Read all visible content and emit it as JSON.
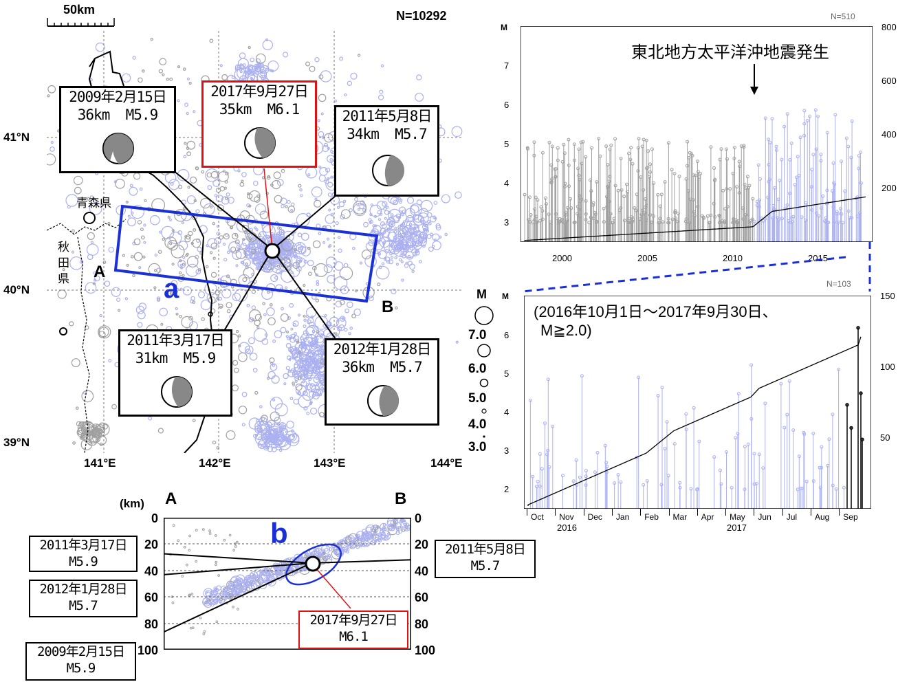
{
  "map": {
    "scale_label": "50km",
    "count": "N=10292",
    "lat_labels": [
      "41°N",
      "40°N",
      "39°N"
    ],
    "lon_labels": [
      "141°E",
      "142°E",
      "143°E",
      "144°E"
    ],
    "lat_values": [
      41,
      40,
      39
    ],
    "lon_values": [
      141,
      142,
      143,
      144
    ],
    "prefecture_aomori": "青森県",
    "prefecture_akita": [
      "秋",
      "田",
      "県"
    ],
    "point_a": "A",
    "point_b": "B",
    "region_label": "a",
    "magnitude_legend": {
      "title": "M",
      "labels": [
        "7.0",
        "6.0",
        "5.0",
        "4.0",
        "3.0"
      ]
    },
    "events": [
      {
        "date": "2009年2月15日",
        "depth": "36km",
        "mag": "M5.9"
      },
      {
        "date": "2017年9月27日",
        "depth": "35km",
        "mag": "M6.1",
        "highlight": "#e01010"
      },
      {
        "date": "2011年5月8日",
        "depth": "34km",
        "mag": "M5.7"
      },
      {
        "date": "2011年3月17日",
        "depth": "31km",
        "mag": "M5.9"
      },
      {
        "date": "2012年1月28日",
        "depth": "36km",
        "mag": "M5.7"
      }
    ]
  },
  "section": {
    "unit": "(km)",
    "point_a": "A",
    "point_b": "B",
    "region_label": "b",
    "depth_ticks": [
      "0",
      "20",
      "40",
      "60",
      "80",
      "100"
    ],
    "events": [
      {
        "date": "2011年3月17日",
        "mag": "M5.9"
      },
      {
        "date": "2012年1月28日",
        "mag": "M5.7"
      },
      {
        "date": "2009年2月15日",
        "mag": "M5.9"
      },
      {
        "date": "2011年5月8日",
        "mag": "M5.7"
      },
      {
        "date": "2017年9月27日",
        "mag": "M6.1",
        "highlight": "#e01010"
      }
    ]
  },
  "chart_top": {
    "count": "N=510",
    "m_label": "M",
    "annotation": "東北地方太平洋沖地震発生",
    "x_ticks": [
      "2000",
      "2005",
      "2010",
      "2015"
    ],
    "y_left_ticks": [
      "3",
      "4",
      "5",
      "6",
      "7"
    ],
    "y_right_ticks": [
      "200",
      "400",
      "600",
      "800"
    ]
  },
  "chart_bottom": {
    "count": "N=103",
    "m_label": "M",
    "period_line1": "(2016年10月1日～2017年9月30日、",
    "period_line2": "M≧2.0)",
    "months": [
      "Oct",
      "Nov",
      "Dec",
      "Jan",
      "Feb",
      "Mar",
      "Apr",
      "May",
      "Jun",
      "Jul",
      "Aug",
      "Sep"
    ],
    "years": [
      "2016",
      "2017"
    ],
    "y_left_ticks": [
      "2",
      "3",
      "4",
      "5",
      "6"
    ],
    "y_right_ticks": [
      "50",
      "100",
      "150"
    ]
  },
  "colors": {
    "accent_blue": "#1a2fd6",
    "highlight_red": "#e01010",
    "event_lilac": "#aab0f0",
    "event_gray": "#a0a0a0"
  }
}
